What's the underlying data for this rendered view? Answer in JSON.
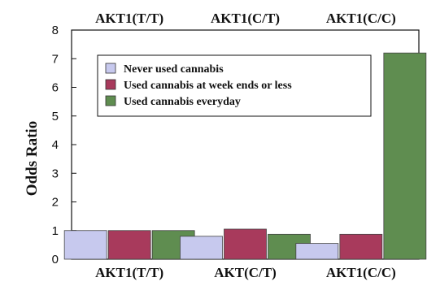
{
  "chart_data": {
    "type": "bar",
    "title": "",
    "xlabel": "",
    "ylabel": "Odds Ratio",
    "ylim": [
      0,
      8
    ],
    "yticks": [
      0,
      1,
      2,
      3,
      4,
      5,
      6,
      7,
      8
    ],
    "grid": false,
    "legend_position": "top-left",
    "top_categories": [
      "AKT1(T/T)",
      "AKT1(C/T)",
      "AKT1(C/C)"
    ],
    "categories": [
      "AKT1(T/T)",
      "AKT(C/T)",
      "AKT1(C/C)"
    ],
    "series": [
      {
        "name": "Never used cannabis",
        "color": "#c7c9ee",
        "values": [
          1.0,
          0.8,
          0.55
        ]
      },
      {
        "name": "Used cannabis at week ends or less",
        "color": "#a83a5c",
        "values": [
          1.0,
          1.05,
          0.87
        ]
      },
      {
        "name": "Used cannabis everyday",
        "color": "#5f8d50",
        "values": [
          1.0,
          0.87,
          7.2
        ]
      }
    ]
  }
}
